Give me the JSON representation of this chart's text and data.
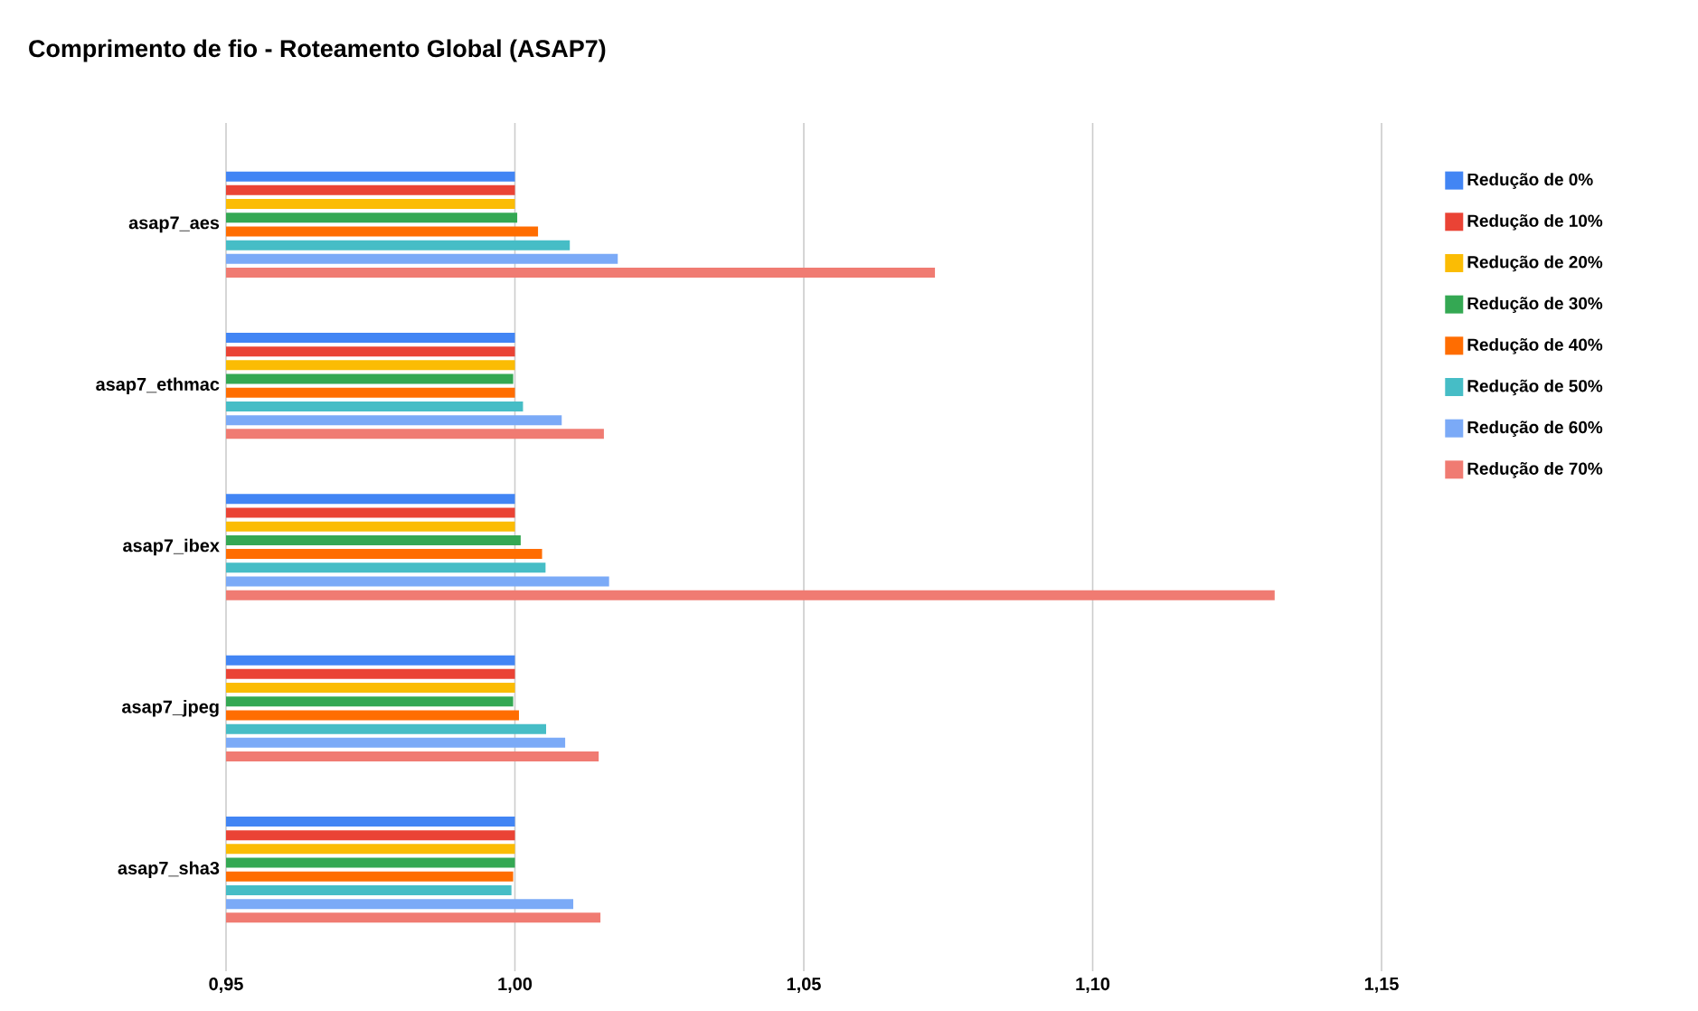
{
  "chart_data": {
    "type": "bar",
    "orientation": "horizontal",
    "title": "Comprimento de fio - Roteamento Global (ASAP7)",
    "categories": [
      "asap7_aes",
      "asap7_ethmac",
      "asap7_ibex",
      "asap7_jpeg",
      "asap7_sha3"
    ],
    "series": [
      {
        "name": "Redução de 0%",
        "color": "#4285f4",
        "values": [
          1.0,
          1.0,
          1.0,
          1.0,
          1.0
        ]
      },
      {
        "name": "Redução de 10%",
        "color": "#ea4335",
        "values": [
          1.0,
          1.0,
          1.0,
          1.0,
          1.0
        ]
      },
      {
        "name": "Redução de 20%",
        "color": "#fbbc04",
        "values": [
          1.0,
          1.0,
          1.0,
          1.0,
          1.0
        ]
      },
      {
        "name": "Redução de 30%",
        "color": "#34a853",
        "values": [
          1.0004,
          0.9997,
          1.001,
          0.9997,
          1.0
        ]
      },
      {
        "name": "Redução de 40%",
        "color": "#ff6d01",
        "values": [
          1.004,
          1.0,
          1.0047,
          1.0007,
          0.9997
        ]
      },
      {
        "name": "Redução de 50%",
        "color": "#46bdc6",
        "values": [
          1.0095,
          1.0014,
          1.0053,
          1.0054,
          0.9994
        ]
      },
      {
        "name": "Redução de 60%",
        "color": "#7baaf7",
        "values": [
          1.0178,
          1.0081,
          1.0163,
          1.0087,
          1.0101
        ]
      },
      {
        "name": "Redução de 70%",
        "color": "#f07b72",
        "values": [
          1.0727,
          1.0154,
          1.1315,
          1.0145,
          1.0148
        ]
      }
    ],
    "xlim": [
      0.95,
      1.15
    ],
    "xticks": [
      {
        "value": 0.95,
        "label": "0,95"
      },
      {
        "value": 1.0,
        "label": "1,00"
      },
      {
        "value": 1.05,
        "label": "1,05"
      },
      {
        "value": 1.1,
        "label": "1,10"
      },
      {
        "value": 1.15,
        "label": "1,15"
      }
    ],
    "grid": "x",
    "legend": "right"
  }
}
